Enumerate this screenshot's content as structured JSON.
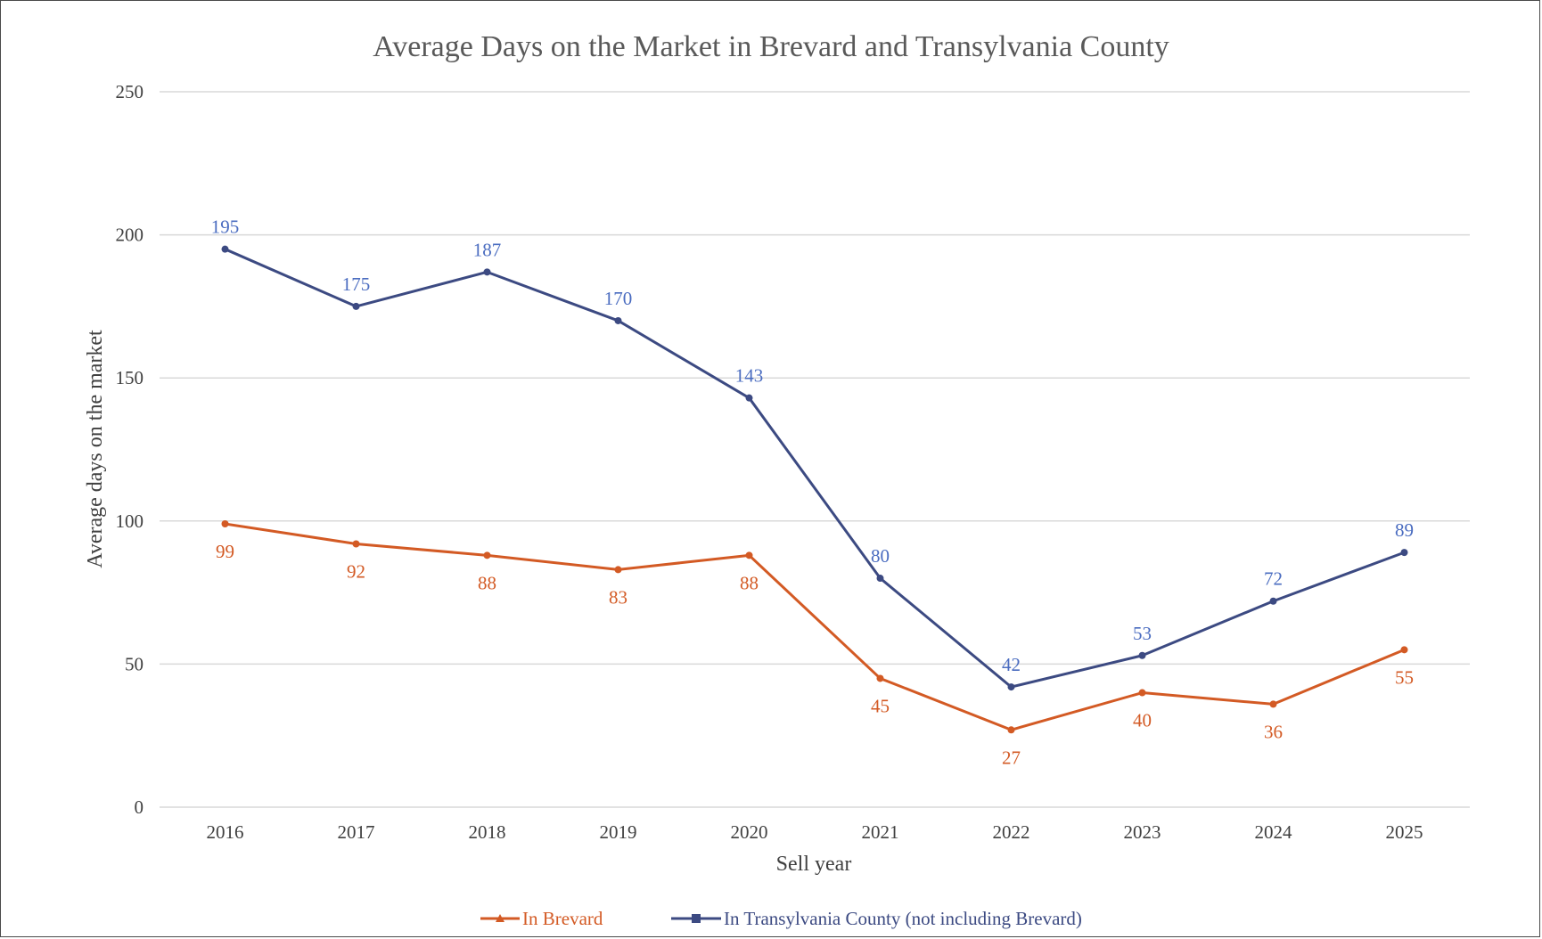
{
  "chart_data": {
    "type": "line",
    "title": "Average Days on the Market in Brevard and Transylvania County",
    "xlabel": "Sell year",
    "ylabel": "Average days on the market",
    "categories": [
      "2016",
      "2017",
      "2018",
      "2019",
      "2020",
      "2021",
      "2022",
      "2023",
      "2024",
      "2025"
    ],
    "yticks": [
      0,
      50,
      100,
      150,
      200,
      250
    ],
    "ylim": [
      0,
      250
    ],
    "grid": true,
    "legend_position": "bottom",
    "series": [
      {
        "name": "In Brevard",
        "color": "#d35a24",
        "marker": "triangle",
        "label_position": "below",
        "values": [
          99,
          92,
          88,
          83,
          88,
          45,
          27,
          40,
          36,
          55
        ]
      },
      {
        "name": "In Transylvania County (not including Brevard)",
        "color": "#3c4a82",
        "label_color": "#4a6cc0",
        "marker": "square",
        "label_position": "above",
        "values": [
          195,
          175,
          187,
          170,
          143,
          80,
          42,
          53,
          72,
          89
        ]
      }
    ]
  }
}
